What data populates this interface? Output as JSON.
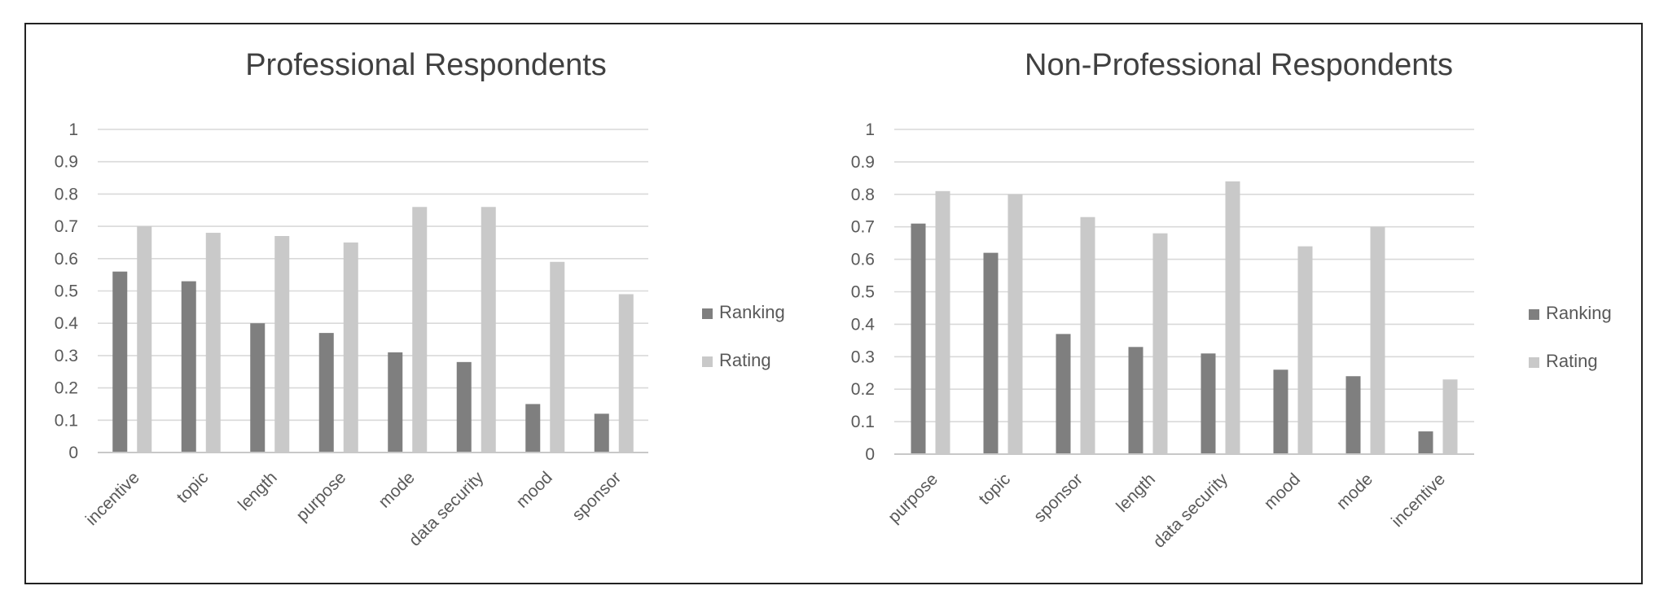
{
  "chart_data": [
    {
      "type": "bar",
      "title": "Professional Respondents",
      "categories": [
        "incentive",
        "topic",
        "length",
        "purpose",
        "mode",
        "data security",
        "mood",
        "sponsor"
      ],
      "series": [
        {
          "name": "Ranking",
          "values": [
            0.56,
            0.53,
            0.4,
            0.37,
            0.31,
            0.28,
            0.15,
            0.12
          ]
        },
        {
          "name": "Rating",
          "values": [
            0.7,
            0.68,
            0.67,
            0.65,
            0.76,
            0.76,
            0.59,
            0.49
          ]
        }
      ],
      "y_ticks": [
        "0",
        "0.1",
        "0.2",
        "0.3",
        "0.4",
        "0.5",
        "0.6",
        "0.7",
        "0.8",
        "0.9",
        "1"
      ],
      "ylim": [
        0,
        1
      ],
      "grid": true,
      "legend_position": "right"
    },
    {
      "type": "bar",
      "title": "Non-Professional Respondents",
      "categories": [
        "purpose",
        "topic",
        "sponsor",
        "length",
        "data security",
        "mood",
        "mode",
        "incentive"
      ],
      "series": [
        {
          "name": "Ranking",
          "values": [
            0.71,
            0.62,
            0.37,
            0.33,
            0.31,
            0.26,
            0.24,
            0.07
          ]
        },
        {
          "name": "Rating",
          "values": [
            0.81,
            0.8,
            0.73,
            0.68,
            0.84,
            0.64,
            0.7,
            0.23
          ]
        }
      ],
      "y_ticks": [
        "0",
        "0.1",
        "0.2",
        "0.3",
        "0.4",
        "0.5",
        "0.6",
        "0.7",
        "0.8",
        "0.9",
        "1"
      ],
      "ylim": [
        0,
        1
      ],
      "grid": true,
      "legend_position": "right"
    }
  ],
  "colors": {
    "Ranking": "#7f7f7f",
    "Rating": "#c9c9c9"
  }
}
